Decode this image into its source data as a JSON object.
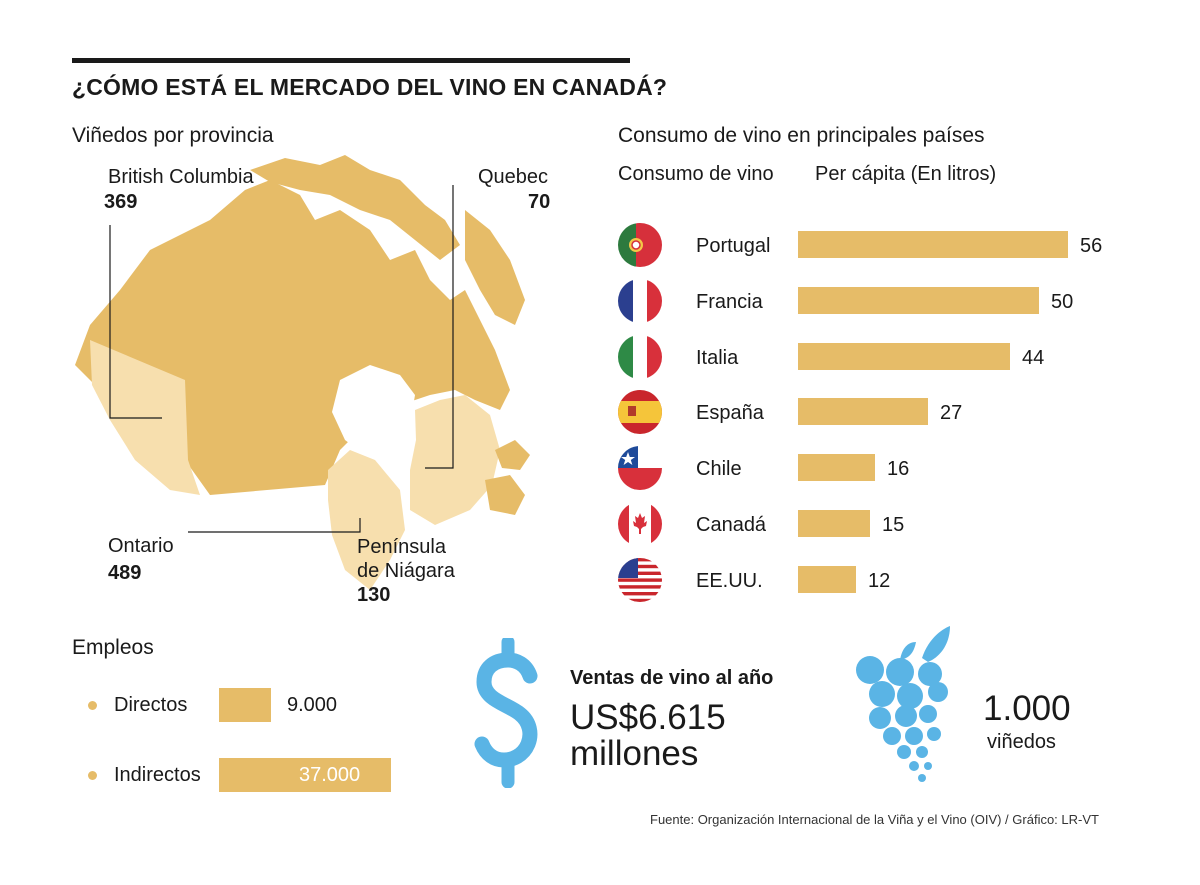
{
  "title": "¿CÓMO ESTÁ EL MERCADO DEL VINO EN CANADÁ?",
  "map": {
    "heading": "Viñedos por provincia",
    "regions": [
      {
        "name": "British Columbia",
        "value": "369"
      },
      {
        "name": "Quebec",
        "value": "70"
      },
      {
        "name": "Ontario",
        "value": "489"
      },
      {
        "name": "Península\nde Niágara",
        "value": "130"
      }
    ]
  },
  "consumption": {
    "heading": "Consumo de vino en principales países",
    "col1": "Consumo de vino",
    "col2": "Per cápita (En litros)"
  },
  "chart_data": {
    "type": "bar",
    "title": "Consumo de vino en principales países",
    "xlabel": "Consumo de vino",
    "ylabel": "Per cápita (En litros)",
    "categories": [
      "Portugal",
      "Francia",
      "Italia",
      "España",
      "Chile",
      "Canadá",
      "EE.UU."
    ],
    "values": [
      56,
      50,
      44,
      27,
      16,
      15,
      12
    ],
    "flags": [
      "portugal-flag-icon",
      "france-flag-icon",
      "italy-flag-icon",
      "spain-flag-icon",
      "chile-flag-icon",
      "canada-flag-icon",
      "usa-flag-icon"
    ],
    "bar_color": "#e6bc68"
  },
  "employment": {
    "heading": "Empleos",
    "items": [
      {
        "label": "Directos",
        "value": "9.000",
        "amount": 9000
      },
      {
        "label": "Indirectos",
        "value": "37.000",
        "amount": 37000
      }
    ]
  },
  "sales": {
    "label": "Ventas de vino al año",
    "amount": "US$6.615",
    "unit": "millones",
    "icon": "dollar-icon",
    "color": "#5ab4e5"
  },
  "vineyards": {
    "value": "1.000",
    "label": "viñedos",
    "icon": "grapes-icon"
  },
  "source": "Fuente: Organización Internacional de la Viña y el Vino (OIV)  / Gráfico: LR-VT"
}
